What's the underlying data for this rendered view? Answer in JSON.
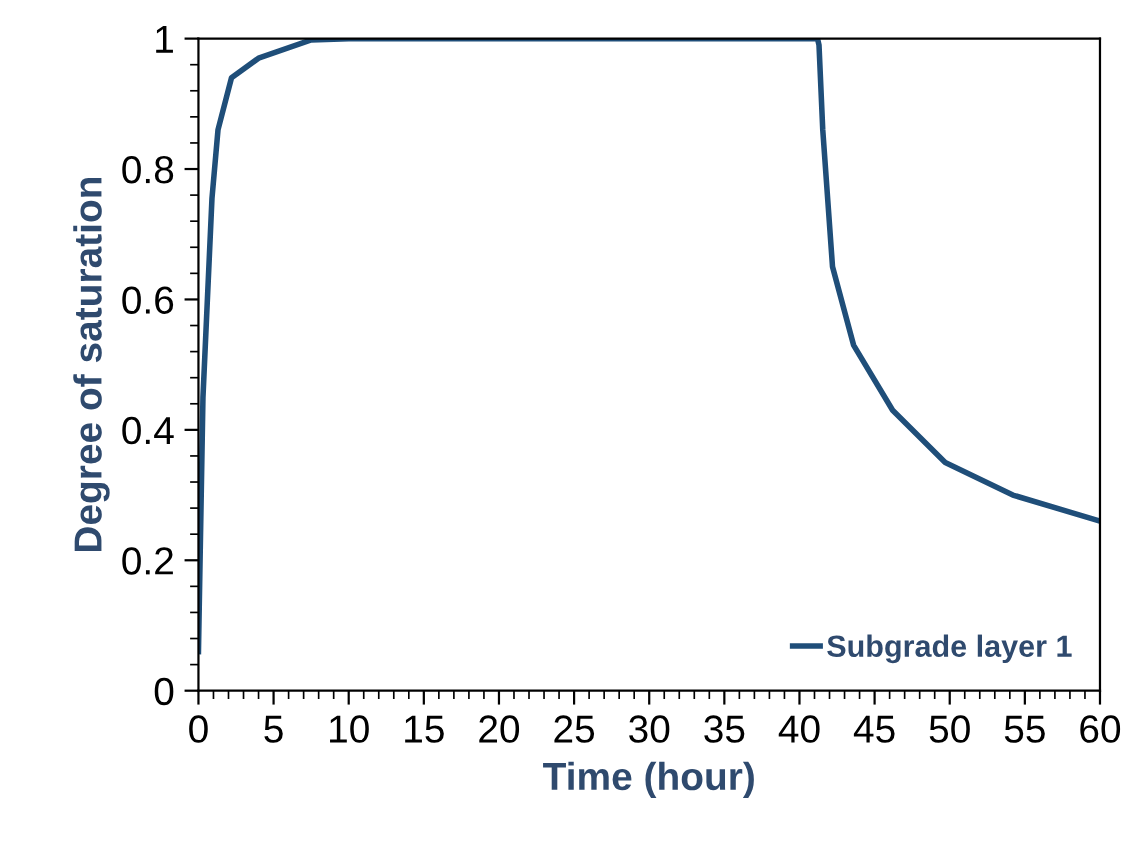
{
  "chart_data": {
    "type": "line",
    "xlabel": "Time (hour)",
    "ylabel": "Degree of saturation",
    "xlim": [
      0,
      60
    ],
    "xticks": [
      0,
      5,
      10,
      15,
      20,
      25,
      30,
      35,
      40,
      45,
      50,
      55,
      60
    ],
    "ylim": [
      0,
      1
    ],
    "yticks": [
      0,
      0.2,
      0.4,
      0.6,
      0.8,
      1
    ],
    "legend": "bottom right",
    "grid": false,
    "marker": "none",
    "line_style": "solid",
    "series": [
      {
        "name": "Subgrade layer 1",
        "color": "#1f4e79",
        "x": [
          0,
          0.3,
          0.9,
          1.3,
          2.2,
          4,
          7.5,
          10,
          20,
          30,
          41.2,
          41.3,
          41.55,
          42.2,
          43.6,
          46.2,
          49.7,
          54.2,
          60
        ],
        "values": [
          0.06,
          0.45,
          0.755,
          0.86,
          0.94,
          0.97,
          0.998,
          1,
          1,
          1,
          1,
          0.99,
          0.86,
          0.65,
          0.53,
          0.43,
          0.35,
          0.3,
          0.26
        ]
      }
    ]
  }
}
